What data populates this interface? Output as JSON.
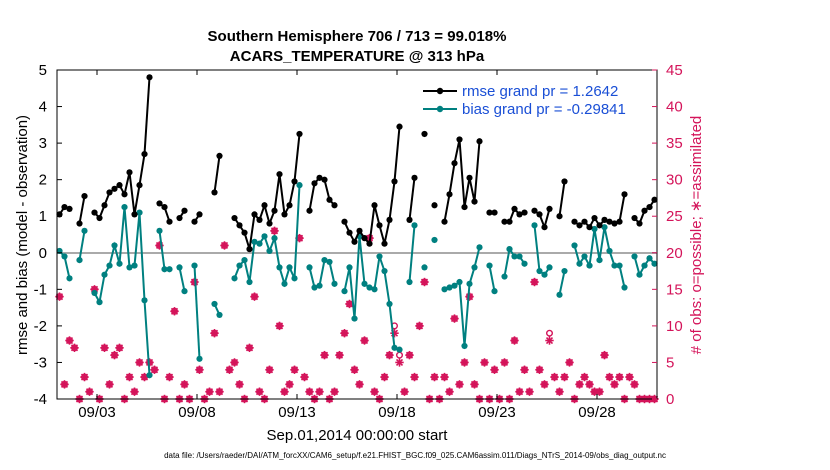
{
  "colors": {
    "rmse": "#000000",
    "bias": "#008080",
    "obs": "#d4145a",
    "zero": "#aaaaaa",
    "legend_text": "#1a4fd6"
  },
  "chart_data": {
    "type": "line",
    "title": "Southern Hemisphere 706 / 713 = 99.018%",
    "subtitle": "ACARS_TEMPERATURE @ 313 hPa",
    "xlabel": "Sep.01,2014 00:00:00 start",
    "ylabel": "rmse and bias (model - observation)",
    "y2label": "# of obs: o=possible; ∗=assimilated",
    "x_range": [
      1.0,
      31.0
    ],
    "ylim": [
      -4,
      5
    ],
    "y2lim": [
      0,
      45
    ],
    "x_ticks": [
      {
        "x": 3,
        "label": "09/03"
      },
      {
        "x": 8,
        "label": "09/08"
      },
      {
        "x": 13,
        "label": "09/13"
      },
      {
        "x": 18,
        "label": "09/18"
      },
      {
        "x": 23,
        "label": "09/23"
      },
      {
        "x": 28,
        "label": "09/28"
      }
    ],
    "y_ticks": [
      "-4",
      "-3",
      "-2",
      "-1",
      "0",
      "1",
      "2",
      "3",
      "4",
      "5"
    ],
    "y2_ticks": [
      "0",
      "5",
      "10",
      "15",
      "20",
      "25",
      "30",
      "35",
      "40",
      "45"
    ],
    "legend": [
      {
        "name": "rmse",
        "label": "rmse grand pr = 1.2642"
      },
      {
        "name": "bias",
        "label": "bias grand pr = -0.29841"
      }
    ],
    "x": [
      1.125,
      1.375,
      1.625,
      1.875,
      2.125,
      2.375,
      2.625,
      2.875,
      3.125,
      3.375,
      3.625,
      3.875,
      4.125,
      4.375,
      4.625,
      4.875,
      5.125,
      5.375,
      5.625,
      5.875,
      6.125,
      6.375,
      6.625,
      6.875,
      7.125,
      7.375,
      7.625,
      7.875,
      8.125,
      8.375,
      8.625,
      8.875,
      9.125,
      9.375,
      9.625,
      9.875,
      10.125,
      10.375,
      10.625,
      10.875,
      11.125,
      11.375,
      11.625,
      11.875,
      12.125,
      12.375,
      12.625,
      12.875,
      13.125,
      13.375,
      13.625,
      13.875,
      14.125,
      14.375,
      14.625,
      14.875,
      15.125,
      15.375,
      15.625,
      15.875,
      16.125,
      16.375,
      16.625,
      16.875,
      17.125,
      17.375,
      17.625,
      17.875,
      18.125,
      18.375,
      18.625,
      18.875,
      19.125,
      19.375,
      19.625,
      19.875,
      20.125,
      20.375,
      20.625,
      20.875,
      21.125,
      21.375,
      21.625,
      21.875,
      22.125,
      22.375,
      22.625,
      22.875,
      23.125,
      23.375,
      23.625,
      23.875,
      24.125,
      24.375,
      24.625,
      24.875,
      25.125,
      25.375,
      25.625,
      25.875,
      26.125,
      26.375,
      26.625,
      26.875,
      27.125,
      27.375,
      27.625,
      27.875,
      28.125,
      28.375,
      28.625,
      28.875,
      29.125,
      29.375,
      29.625,
      29.875,
      30.125,
      30.375,
      30.625,
      30.875
    ],
    "series": [
      {
        "name": "rmse",
        "values": [
          1.05,
          1.25,
          1.2,
          null,
          0.8,
          1.55,
          null,
          1.1,
          0.95,
          1.3,
          1.65,
          1.75,
          1.85,
          1.6,
          2.2,
          1.05,
          1.85,
          2.7,
          4.8,
          null,
          1.35,
          1.25,
          0.85,
          null,
          0.95,
          1.15,
          null,
          0.85,
          1.05,
          null,
          null,
          1.65,
          2.65,
          null,
          null,
          0.95,
          0.75,
          0.55,
          0.1,
          1.05,
          0.9,
          1.3,
          0.8,
          1.15,
          2.15,
          1.05,
          1.3,
          1.95,
          3.25,
          null,
          1.15,
          1.9,
          2.05,
          2.0,
          1.45,
          1.3,
          null,
          0.85,
          0.55,
          0.3,
          0.6,
          0.4,
          0.25,
          1.3,
          0.75,
          0.25,
          0.9,
          1.95,
          3.45,
          null,
          0.9,
          2.05,
          null,
          3.25,
          null,
          1.3,
          null,
          0.85,
          1.6,
          2.45,
          3.1,
          1.25,
          2.05,
          1.4,
          3.05,
          null,
          1.1,
          1.1,
          null,
          0.85,
          0.85,
          1.2,
          1.05,
          1.1,
          null,
          1.15,
          1.05,
          0.7,
          1.2,
          null,
          1.0,
          1.95,
          null,
          0.85,
          0.75,
          0.85,
          0.7,
          0.95,
          0.75,
          0.9,
          0.85,
          0.8,
          0.85,
          1.6,
          null,
          0.95,
          0.8,
          1.15,
          1.25,
          1.45
        ]
      },
      {
        "name": "bias",
        "values": [
          0.05,
          -0.1,
          -0.7,
          null,
          -0.2,
          0.6,
          null,
          -1.1,
          -1.35,
          -0.6,
          -0.35,
          0.2,
          -0.3,
          1.25,
          -0.4,
          -0.35,
          1.1,
          -1.3,
          -3.35,
          null,
          0.6,
          -0.45,
          -0.45,
          null,
          -0.4,
          -1.05,
          null,
          -0.35,
          -2.9,
          null,
          null,
          -1.4,
          -1.7,
          null,
          null,
          -0.7,
          -0.35,
          -0.2,
          -0.8,
          0.3,
          0.25,
          0.45,
          0.05,
          0.4,
          -0.4,
          -0.85,
          -0.4,
          -0.7,
          1.85,
          null,
          -0.4,
          -0.95,
          -0.9,
          -0.2,
          -0.25,
          -0.85,
          null,
          -1.05,
          -0.4,
          -1.8,
          0.45,
          -0.85,
          -0.95,
          -1.0,
          -0.1,
          -0.5,
          -1.4,
          -2.6,
          -2.65,
          null,
          -0.8,
          0.75,
          null,
          -0.4,
          null,
          0.35,
          null,
          -1.0,
          -0.95,
          -0.9,
          -0.8,
          -2.55,
          -0.85,
          -0.4,
          0.15,
          null,
          -0.35,
          -1.05,
          null,
          -0.65,
          0.1,
          -0.1,
          -0.1,
          -0.3,
          null,
          0.75,
          -0.5,
          -0.6,
          -0.4,
          null,
          -1.15,
          -0.5,
          null,
          0.2,
          -0.3,
          -0.1,
          -0.35,
          0.65,
          -0.2,
          0.7,
          0.05,
          -0.35,
          -0.35,
          -0.95,
          null,
          -0.1,
          -0.6,
          -0.35,
          -0.15,
          -0.3
        ]
      },
      {
        "name": "obs_assimilated",
        "values": [
          14,
          2,
          8,
          7,
          0,
          3,
          1,
          15,
          0,
          7,
          2,
          6,
          7,
          0,
          3,
          1,
          5,
          3,
          5,
          4,
          21,
          0,
          3,
          12,
          0,
          2,
          0,
          16,
          4,
          0,
          1,
          9,
          1,
          21,
          4,
          5,
          2,
          0,
          7,
          14,
          1,
          0,
          4,
          23,
          10,
          1,
          2,
          4,
          22,
          3,
          1,
          0,
          1,
          6,
          0,
          1,
          6,
          9,
          13,
          4,
          2,
          8,
          22,
          1,
          0,
          3,
          6,
          9,
          5,
          1,
          6,
          3,
          10,
          16,
          0,
          3,
          0,
          3,
          1,
          11,
          2,
          5,
          14,
          2,
          0,
          5,
          0,
          4,
          0,
          5,
          0,
          8,
          1,
          4,
          1,
          16,
          4,
          2,
          8,
          3,
          1,
          3,
          5,
          0,
          2,
          3,
          2,
          1,
          1,
          6,
          3,
          2,
          3,
          0,
          3,
          2,
          0,
          0,
          0,
          0
        ]
      },
      {
        "name": "obs_possible",
        "values": [
          14,
          2,
          8,
          7,
          0,
          3,
          1,
          15,
          0,
          7,
          2,
          6,
          7,
          0,
          3,
          1,
          5,
          3,
          5,
          4,
          21,
          0,
          3,
          12,
          0,
          2,
          0,
          16,
          4,
          0,
          1,
          9,
          1,
          21,
          4,
          5,
          2,
          0,
          7,
          14,
          1,
          0,
          4,
          23,
          10,
          1,
          2,
          4,
          22,
          3,
          1,
          0,
          1,
          6,
          0,
          1,
          6,
          9,
          13,
          4,
          2,
          8,
          22,
          1,
          0,
          3,
          6,
          10,
          6,
          1,
          6,
          3,
          10,
          16,
          0,
          3,
          0,
          3,
          1,
          11,
          2,
          5,
          14,
          2,
          0,
          5,
          0,
          4,
          0,
          5,
          0,
          8,
          1,
          4,
          1,
          16,
          4,
          2,
          9,
          3,
          1,
          3,
          5,
          0,
          2,
          3,
          2,
          1,
          1,
          6,
          3,
          2,
          3,
          0,
          3,
          2,
          0,
          0,
          0,
          0
        ]
      }
    ]
  },
  "footnote": "data file: /Users/raeder/DAI/ATM_forcXX/CAM6_setup/f.e21.FHIST_BGC.f09_025.CAM6assim.011/Diags_NTrS_2014-09/obs_diag_output.nc"
}
